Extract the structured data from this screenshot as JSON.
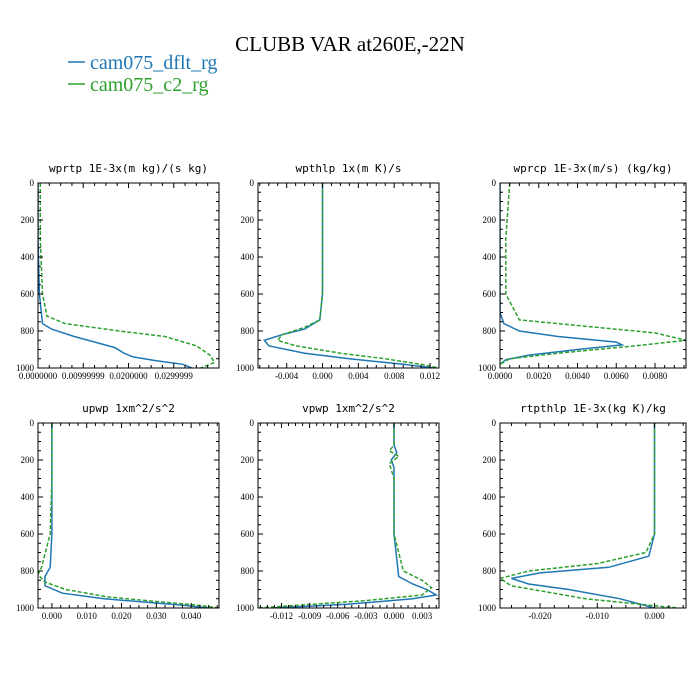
{
  "figure": {
    "title": "CLUBB VAR at260E,-22N",
    "legend": [
      {
        "label": "cam075_dflt_rg",
        "color": "#1f77b4",
        "dash": false
      },
      {
        "label": "cam075_c2_rg",
        "color": "#2ca02c",
        "dash": true
      }
    ]
  },
  "chart_data": [
    {
      "type": "line",
      "title": "wprtp  1E-3x(m kg)/(s kg)",
      "xlim": [
        0.0,
        0.04
      ],
      "ylim": [
        1000,
        0
      ],
      "xticks": [
        0.0,
        0.01,
        0.02,
        0.03
      ],
      "xtick_labels": [
        "0.0000000",
        "0.00999999",
        "0.0200000",
        "0.0299999"
      ],
      "yticks": [
        0,
        200,
        400,
        600,
        800,
        1000
      ],
      "series": [
        {
          "name": "cam075_dflt_rg",
          "x": [
            0.0,
            0.0,
            0.0003,
            0.001,
            0.003,
            0.008,
            0.014,
            0.017,
            0.019,
            0.021,
            0.026,
            0.032,
            0.034
          ],
          "y": [
            0,
            300,
            600,
            760,
            790,
            830,
            870,
            890,
            920,
            940,
            960,
            980,
            1000
          ]
        },
        {
          "name": "cam075_c2_rg",
          "x": [
            0.0005,
            0.0005,
            0.001,
            0.002,
            0.006,
            0.018,
            0.028,
            0.035,
            0.038,
            0.039,
            0.036
          ],
          "y": [
            0,
            300,
            600,
            720,
            760,
            800,
            830,
            880,
            930,
            970,
            1000
          ]
        }
      ]
    },
    {
      "type": "line",
      "title": "wpthlp  1x(m K)/s",
      "xlim": [
        -0.0072,
        0.013
      ],
      "ylim": [
        1000,
        0
      ],
      "xticks": [
        -0.004,
        0.0,
        0.004,
        0.008,
        0.012
      ],
      "xtick_labels": [
        "-0.004",
        "0.000",
        "0.004",
        "0.008",
        "0.012"
      ],
      "yticks": [
        0,
        200,
        400,
        600,
        800,
        1000
      ],
      "series": [
        {
          "name": "cam075_dflt_rg",
          "x": [
            0.0,
            0.0,
            0.0,
            -0.0003,
            -0.002,
            -0.0045,
            -0.0065,
            -0.006,
            -0.002,
            0.003,
            0.009,
            0.0125
          ],
          "y": [
            0,
            300,
            600,
            740,
            790,
            820,
            850,
            880,
            920,
            950,
            980,
            1000
          ]
        },
        {
          "name": "cam075_c2_rg",
          "x": [
            0.0,
            0.0,
            0.0,
            -0.0003,
            -0.002,
            -0.0045,
            -0.005,
            -0.003,
            0.002,
            0.007,
            0.011,
            0.013
          ],
          "y": [
            0,
            300,
            600,
            740,
            780,
            820,
            850,
            880,
            920,
            950,
            980,
            1000
          ]
        }
      ]
    },
    {
      "type": "line",
      "title": "wprcp  1E-3x(m/s) (kg/kg)",
      "xlim": [
        0.0,
        0.0096
      ],
      "ylim": [
        1000,
        0
      ],
      "xticks": [
        0.0,
        0.002,
        0.004,
        0.006,
        0.008
      ],
      "xtick_labels": [
        "0.0000",
        "0.0020",
        "0.0040",
        "0.0060",
        "0.0080"
      ],
      "yticks": [
        0,
        200,
        400,
        600,
        800,
        1000
      ],
      "series": [
        {
          "name": "cam075_dflt_rg",
          "x": [
            0.0,
            0.0,
            0.0,
            0.0002,
            0.001,
            0.003,
            0.006,
            0.0063,
            0.004,
            0.0015,
            0.0003,
            0.0
          ],
          "y": [
            0,
            400,
            700,
            760,
            800,
            830,
            860,
            875,
            900,
            930,
            955,
            980
          ]
        },
        {
          "name": "cam075_c2_rg",
          "x": [
            0.0005,
            0.0003,
            0.0003,
            0.001,
            0.004,
            0.008,
            0.0096,
            0.007,
            0.003,
            0.0005,
            0.0
          ],
          "y": [
            0,
            300,
            600,
            740,
            770,
            810,
            850,
            880,
            920,
            950,
            980
          ]
        }
      ]
    },
    {
      "type": "line",
      "title": "upwp  1xm^2/s^2",
      "xlim": [
        -0.004,
        0.048
      ],
      "ylim": [
        1000,
        0
      ],
      "xticks": [
        0.0,
        0.01,
        0.02,
        0.03,
        0.04
      ],
      "xtick_labels": [
        "0.000",
        "0.010",
        "0.020",
        "0.030",
        "0.040"
      ],
      "yticks": [
        0,
        200,
        400,
        600,
        800,
        1000
      ],
      "series": [
        {
          "name": "cam075_dflt_rg",
          "x": [
            0.0,
            0.0,
            0.0,
            -0.0005,
            -0.002,
            -0.002,
            0.003,
            0.015,
            0.028,
            0.038,
            0.045
          ],
          "y": [
            0,
            300,
            600,
            780,
            830,
            880,
            920,
            950,
            970,
            985,
            1000
          ]
        },
        {
          "name": "cam075_c2_rg",
          "x": [
            0.0,
            0.0,
            -0.0005,
            -0.003,
            -0.004,
            -0.002,
            0.004,
            0.016,
            0.03,
            0.042,
            0.048
          ],
          "y": [
            0,
            300,
            600,
            780,
            820,
            860,
            900,
            940,
            965,
            985,
            1000
          ]
        }
      ]
    },
    {
      "type": "line",
      "title": "vpwp  1xm^2/s^2",
      "xlim": [
        -0.0145,
        0.0048
      ],
      "ylim": [
        1000,
        0
      ],
      "xticks": [
        -0.012,
        -0.009,
        -0.006,
        -0.003,
        0.0,
        0.003
      ],
      "xtick_labels": [
        "-0.012",
        "-0.009",
        "-0.006",
        "-0.003",
        "0.000",
        "0.003"
      ],
      "yticks": [
        0,
        200,
        400,
        600,
        800,
        1000
      ],
      "series": [
        {
          "name": "cam075_dflt_rg",
          "x": [
            0.0,
            0.0,
            0.0003,
            -0.0003,
            0.0,
            0.0,
            0.0,
            0.0005,
            0.002,
            0.0035,
            0.0045,
            0.002,
            -0.005,
            -0.013
          ],
          "y": [
            0,
            120,
            160,
            200,
            240,
            300,
            600,
            830,
            870,
            900,
            930,
            950,
            980,
            1000
          ]
        },
        {
          "name": "cam075_c2_rg",
          "x": [
            0.0,
            0.0,
            -0.0005,
            0.0005,
            -0.0005,
            0.0,
            0.0,
            0.001,
            0.003,
            0.004,
            0.003,
            -0.003,
            -0.0145
          ],
          "y": [
            0,
            120,
            150,
            180,
            220,
            300,
            600,
            800,
            850,
            890,
            930,
            960,
            1000
          ]
        }
      ]
    },
    {
      "type": "line",
      "title": "rtpthlp  1E-3x(kg K)/kg",
      "xlim": [
        -0.027,
        0.0055
      ],
      "ylim": [
        1000,
        0
      ],
      "xticks": [
        -0.02,
        -0.01,
        0.0
      ],
      "xtick_labels": [
        "-0.020",
        "-0.010",
        "0.000"
      ],
      "yticks": [
        0,
        200,
        400,
        600,
        800,
        1000
      ],
      "series": [
        {
          "name": "cam075_dflt_rg",
          "x": [
            0.0,
            0.0,
            0.0,
            -0.001,
            -0.008,
            -0.02,
            -0.025,
            -0.022,
            -0.015,
            -0.006,
            0.0
          ],
          "y": [
            0,
            300,
            600,
            720,
            780,
            810,
            840,
            870,
            900,
            950,
            1000
          ]
        },
        {
          "name": "cam075_c2_rg",
          "x": [
            0.0,
            0.0,
            0.0,
            -0.0015,
            -0.01,
            -0.022,
            -0.027,
            -0.025,
            -0.012,
            0.004
          ],
          "y": [
            0,
            300,
            600,
            700,
            760,
            800,
            840,
            880,
            950,
            1000
          ]
        }
      ]
    }
  ]
}
